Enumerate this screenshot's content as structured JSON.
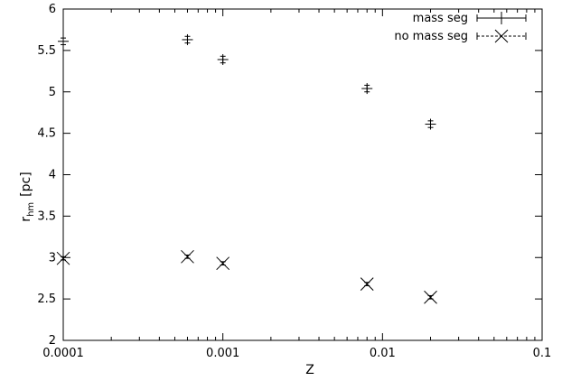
{
  "chart_data": {
    "type": "scatter",
    "xlabel": "Z",
    "ylabel_main": "r",
    "ylabel_sub": "hm",
    "ylabel_unit": "[pc]",
    "x_scale": "log",
    "xlim": [
      0.0001,
      0.1
    ],
    "ylim": [
      2,
      6
    ],
    "x_ticks": [
      {
        "value": 0.0001,
        "label": "0.0001"
      },
      {
        "value": 0.001,
        "label": "0.001"
      },
      {
        "value": 0.01,
        "label": "0.01"
      },
      {
        "value": 0.1,
        "label": "0.1"
      }
    ],
    "y_ticks": [
      {
        "value": 2,
        "label": "2"
      },
      {
        "value": 2.5,
        "label": "2.5"
      },
      {
        "value": 3,
        "label": "3"
      },
      {
        "value": 3.5,
        "label": "3.5"
      },
      {
        "value": 4,
        "label": "4"
      },
      {
        "value": 4.5,
        "label": "4.5"
      },
      {
        "value": 5,
        "label": "5"
      },
      {
        "value": 5.5,
        "label": "5.5"
      },
      {
        "value": 6,
        "label": "6"
      }
    ],
    "legend_position": "top-right",
    "grid": false,
    "series": [
      {
        "name": "mass seg",
        "marker": "plus",
        "line_style": "solid",
        "color": "#000000",
        "points": [
          {
            "x": 0.0001,
            "y": 5.61,
            "err": 0.04
          },
          {
            "x": 0.0006,
            "y": 5.63,
            "err": 0.04
          },
          {
            "x": 0.001,
            "y": 5.39,
            "err": 0.04
          },
          {
            "x": 0.008,
            "y": 5.04,
            "err": 0.04
          },
          {
            "x": 0.02,
            "y": 4.61,
            "err": 0.04
          }
        ]
      },
      {
        "name": "no mass seg",
        "marker": "cross",
        "line_style": "dashed",
        "color": "#000000",
        "points": [
          {
            "x": 0.0001,
            "y": 2.99,
            "err": 0.02
          },
          {
            "x": 0.0006,
            "y": 3.01,
            "err": 0.02
          },
          {
            "x": 0.001,
            "y": 2.93,
            "err": 0.02
          },
          {
            "x": 0.008,
            "y": 2.68,
            "err": 0.02
          },
          {
            "x": 0.02,
            "y": 2.52,
            "err": 0.02
          }
        ]
      }
    ]
  }
}
